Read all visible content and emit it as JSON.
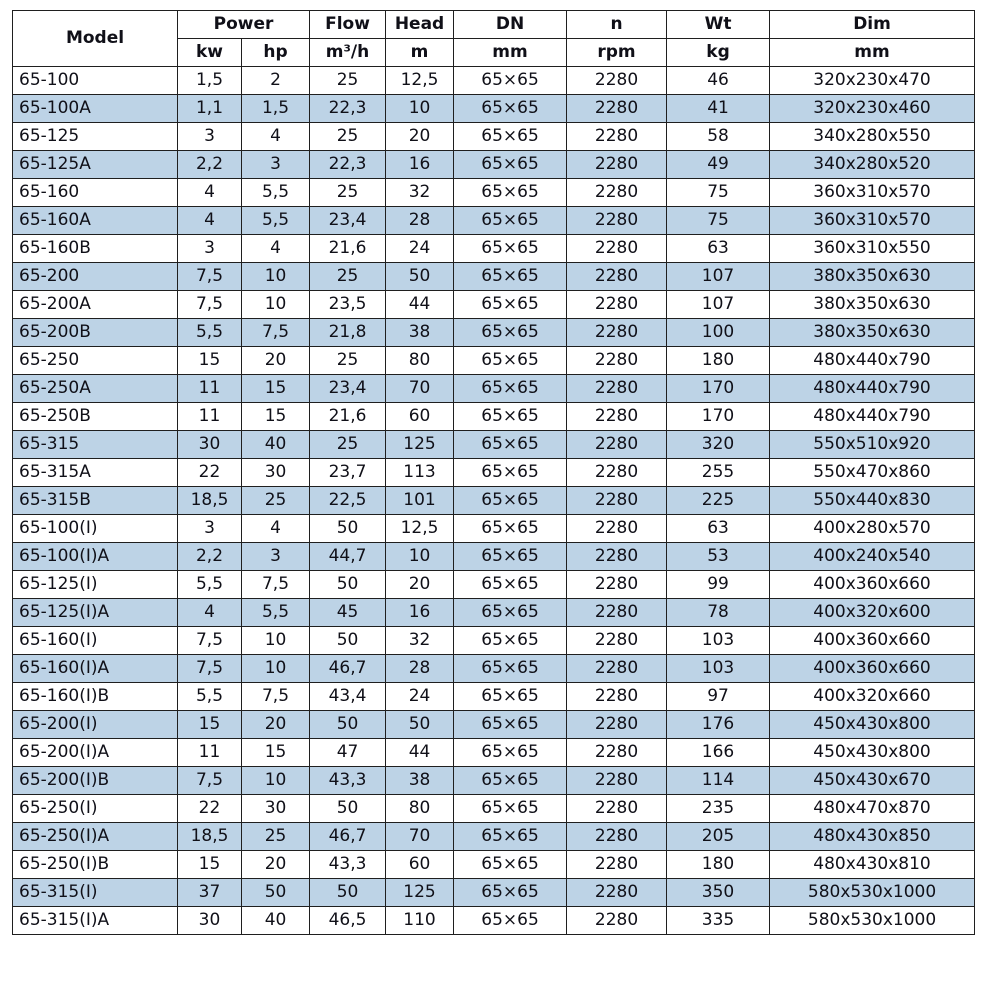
{
  "colors": {
    "row_alt": "#bdd3e6",
    "border": "#1f1f1f",
    "text": "#101018",
    "background": "#ffffff"
  },
  "table": {
    "column_keys": [
      "model",
      "power-kw",
      "power-hp",
      "flow",
      "head",
      "dn",
      "n",
      "wt",
      "dim"
    ],
    "header": {
      "model": "Model",
      "power": "Power",
      "kw": "kw",
      "hp": "hp",
      "flow": "Flow",
      "flow_unit": "m³/h",
      "head": "Head",
      "head_unit": "m",
      "dn": "DN",
      "dn_unit": "mm",
      "n": "n",
      "n_unit": "rpm",
      "wt": "Wt",
      "wt_unit": "kg",
      "dim": "Dim",
      "dim_unit": "mm"
    },
    "rows": [
      [
        "65-100",
        "1,5",
        "2",
        "25",
        "12,5",
        "65×65",
        "2280",
        "46",
        "320x230x470"
      ],
      [
        "65-100A",
        "1,1",
        "1,5",
        "22,3",
        "10",
        "65×65",
        "2280",
        "41",
        "320x230x460"
      ],
      [
        "65-125",
        "3",
        "4",
        "25",
        "20",
        "65×65",
        "2280",
        "58",
        "340x280x550"
      ],
      [
        "65-125A",
        "2,2",
        "3",
        "22,3",
        "16",
        "65×65",
        "2280",
        "49",
        "340x280x520"
      ],
      [
        "65-160",
        "4",
        "5,5",
        "25",
        "32",
        "65×65",
        "2280",
        "75",
        "360x310x570"
      ],
      [
        "65-160A",
        "4",
        "5,5",
        "23,4",
        "28",
        "65×65",
        "2280",
        "75",
        "360x310x570"
      ],
      [
        "65-160B",
        "3",
        "4",
        "21,6",
        "24",
        "65×65",
        "2280",
        "63",
        "360x310x550"
      ],
      [
        "65-200",
        "7,5",
        "10",
        "25",
        "50",
        "65×65",
        "2280",
        "107",
        "380x350x630"
      ],
      [
        "65-200A",
        "7,5",
        "10",
        "23,5",
        "44",
        "65×65",
        "2280",
        "107",
        "380x350x630"
      ],
      [
        "65-200B",
        "5,5",
        "7,5",
        "21,8",
        "38",
        "65×65",
        "2280",
        "100",
        "380x350x630"
      ],
      [
        "65-250",
        "15",
        "20",
        "25",
        "80",
        "65×65",
        "2280",
        "180",
        "480x440x790"
      ],
      [
        "65-250A",
        "11",
        "15",
        "23,4",
        "70",
        "65×65",
        "2280",
        "170",
        "480x440x790"
      ],
      [
        "65-250B",
        "11",
        "15",
        "21,6",
        "60",
        "65×65",
        "2280",
        "170",
        "480x440x790"
      ],
      [
        "65-315",
        "30",
        "40",
        "25",
        "125",
        "65×65",
        "2280",
        "320",
        "550x510x920"
      ],
      [
        "65-315A",
        "22",
        "30",
        "23,7",
        "113",
        "65×65",
        "2280",
        "255",
        "550x470x860"
      ],
      [
        "65-315B",
        "18,5",
        "25",
        "22,5",
        "101",
        "65×65",
        "2280",
        "225",
        "550x440x830"
      ],
      [
        "65-100(I)",
        "3",
        "4",
        "50",
        "12,5",
        "65×65",
        "2280",
        "63",
        "400x280x570"
      ],
      [
        "65-100(I)A",
        "2,2",
        "3",
        "44,7",
        "10",
        "65×65",
        "2280",
        "53",
        "400x240x540"
      ],
      [
        "65-125(I)",
        "5,5",
        "7,5",
        "50",
        "20",
        "65×65",
        "2280",
        "99",
        "400x360x660"
      ],
      [
        "65-125(I)A",
        "4",
        "5,5",
        "45",
        "16",
        "65×65",
        "2280",
        "78",
        "400x320x600"
      ],
      [
        "65-160(I)",
        "7,5",
        "10",
        "50",
        "32",
        "65×65",
        "2280",
        "103",
        "400x360x660"
      ],
      [
        "65-160(I)A",
        "7,5",
        "10",
        "46,7",
        "28",
        "65×65",
        "2280",
        "103",
        "400x360x660"
      ],
      [
        "65-160(I)B",
        "5,5",
        "7,5",
        "43,4",
        "24",
        "65×65",
        "2280",
        "97",
        "400x320x660"
      ],
      [
        "65-200(I)",
        "15",
        "20",
        "50",
        "50",
        "65×65",
        "2280",
        "176",
        "450x430x800"
      ],
      [
        "65-200(I)A",
        "11",
        "15",
        "47",
        "44",
        "65×65",
        "2280",
        "166",
        "450x430x800"
      ],
      [
        "65-200(I)B",
        "7,5",
        "10",
        "43,3",
        "38",
        "65×65",
        "2280",
        "114",
        "450x430x670"
      ],
      [
        "65-250(I)",
        "22",
        "30",
        "50",
        "80",
        "65×65",
        "2280",
        "235",
        "480x470x870"
      ],
      [
        "65-250(I)A",
        "18,5",
        "25",
        "46,7",
        "70",
        "65×65",
        "2280",
        "205",
        "480x430x850"
      ],
      [
        "65-250(I)B",
        "15",
        "20",
        "43,3",
        "60",
        "65×65",
        "2280",
        "180",
        "480x430x810"
      ],
      [
        "65-315(I)",
        "37",
        "50",
        "50",
        "125",
        "65×65",
        "2280",
        "350",
        "580x530x1000"
      ],
      [
        "65-315(I)A",
        "30",
        "40",
        "46,5",
        "110",
        "65×65",
        "2280",
        "335",
        "580x530x1000"
      ]
    ]
  }
}
